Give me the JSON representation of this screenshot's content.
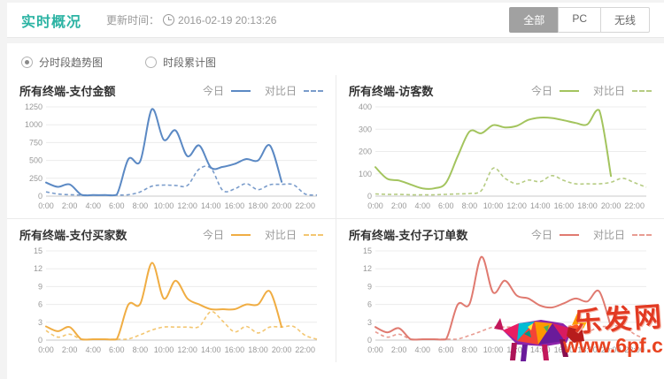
{
  "header": {
    "title": "实时概况",
    "update_label": "更新时间：",
    "update_time": "2016-02-19 20:13:26",
    "buttons": [
      {
        "label": "全部",
        "selected": true
      },
      {
        "label": "PC",
        "selected": false
      },
      {
        "label": "无线",
        "selected": false
      }
    ]
  },
  "filters": {
    "options": [
      {
        "label": "分时段趋势图",
        "selected": true
      },
      {
        "label": "时段累计图",
        "selected": false
      }
    ]
  },
  "watermark": {
    "site_name": "乐发网",
    "site_url": "www.6pf.cn",
    "color": "#e23a23"
  },
  "chart_data": [
    {
      "type": "line",
      "title": "所有终端-支付金额",
      "color": "#5b89c4",
      "dash_color": "#7a9ccb",
      "ylim": [
        0,
        1250
      ],
      "yticks": [
        0,
        250,
        500,
        750,
        1000,
        1250
      ],
      "x_tick_labels": [
        "0:00",
        "2:00",
        "4:00",
        "6:00",
        "8:00",
        "10:00",
        "12:00",
        "14:00",
        "16:00",
        "18:00",
        "20:00",
        "22:00"
      ],
      "legend_position": "top-right",
      "grid": true,
      "series": [
        {
          "name": "今日",
          "style": "solid",
          "values": [
            190,
            130,
            165,
            20,
            15,
            15,
            20,
            520,
            490,
            1220,
            790,
            920,
            560,
            710,
            400,
            410,
            450,
            520,
            500,
            710,
            200
          ]
        },
        {
          "name": "对比日",
          "style": "dashed",
          "values": [
            60,
            30,
            20,
            15,
            15,
            15,
            15,
            20,
            60,
            140,
            155,
            150,
            150,
            380,
            390,
            80,
            100,
            175,
            90,
            160,
            165,
            160,
            30,
            15
          ]
        }
      ]
    },
    {
      "type": "line",
      "title": "所有终端-访客数",
      "color": "#a3c45e",
      "dash_color": "#b6cc83",
      "ylim": [
        0,
        400
      ],
      "yticks": [
        0,
        100,
        200,
        300,
        400
      ],
      "x_tick_labels": [
        "0:00",
        "2:00",
        "4:00",
        "6:00",
        "8:00",
        "10:00",
        "12:00",
        "14:00",
        "16:00",
        "18:00",
        "20:00",
        "22:00"
      ],
      "legend_position": "top-right",
      "grid": true,
      "series": [
        {
          "name": "今日",
          "style": "solid",
          "values": [
            130,
            78,
            70,
            52,
            35,
            35,
            60,
            180,
            290,
            282,
            318,
            308,
            315,
            342,
            352,
            350,
            340,
            328,
            322,
            385,
            90
          ]
        },
        {
          "name": "对比日",
          "style": "dashed",
          "values": [
            10,
            8,
            8,
            6,
            6,
            6,
            8,
            10,
            12,
            25,
            125,
            80,
            55,
            72,
            65,
            92,
            70,
            55,
            55,
            55,
            62,
            80,
            60,
            40
          ]
        }
      ]
    },
    {
      "type": "line",
      "title": "所有终端-支付买家数",
      "color": "#f0ad43",
      "dash_color": "#f3c671",
      "ylim": [
        0,
        15
      ],
      "yticks": [
        0,
        3,
        6,
        9,
        12,
        15
      ],
      "x_tick_labels": [
        "0:00",
        "2:00",
        "4:00",
        "6:00",
        "8:00",
        "10:00",
        "12:00",
        "14:00",
        "16:00",
        "18:00",
        "20:00",
        "22:00"
      ],
      "legend_position": "top-right",
      "grid": true,
      "series": [
        {
          "name": "今日",
          "style": "solid",
          "values": [
            2.3,
            1.5,
            2.2,
            0.15,
            0.15,
            0.15,
            0.15,
            6,
            6.1,
            13,
            7,
            10,
            7,
            6,
            5.2,
            5.2,
            5.2,
            6,
            6,
            8.2,
            2.2
          ]
        },
        {
          "name": "对比日",
          "style": "dashed",
          "values": [
            1.6,
            0.5,
            1.0,
            0.15,
            0.15,
            0.15,
            0.15,
            0.2,
            0.9,
            1.7,
            2.2,
            2.2,
            2.2,
            2.3,
            4.8,
            3.2,
            1.4,
            2.3,
            1.2,
            2.2,
            2.2,
            2.3,
            0.8,
            0.15
          ]
        }
      ]
    },
    {
      "type": "line",
      "title": "所有终端-支付子订单数",
      "color": "#e07a70",
      "dash_color": "#e89c92",
      "ylim": [
        0,
        15
      ],
      "yticks": [
        0,
        3,
        6,
        9,
        12,
        15
      ],
      "x_tick_labels": [
        "0:00",
        "2:00",
        "4:00",
        "6:00",
        "8:00",
        "10:00",
        "12:00",
        "14:00",
        "16:00",
        "18:00",
        "20:00",
        "22:00"
      ],
      "legend_position": "top-right",
      "grid": true,
      "series": [
        {
          "name": "今日",
          "style": "solid",
          "values": [
            2.2,
            1.3,
            2.0,
            0.15,
            0.15,
            0.15,
            0.15,
            6,
            6.1,
            14,
            8,
            10,
            7.5,
            7,
            5.8,
            5.5,
            6.2,
            7,
            6.5,
            8.2,
            2.2
          ]
        },
        {
          "name": "对比日",
          "style": "dashed",
          "values": [
            1.4,
            0.5,
            1.0,
            0.15,
            0.15,
            0.15,
            0.15,
            0.2,
            0.8,
            1.5,
            2.2,
            2.2,
            2.2,
            2.3,
            2.5,
            2.8,
            2.2,
            2.5,
            1.5,
            2.2,
            2.3,
            2.4,
            1.0,
            0.15
          ]
        }
      ]
    }
  ]
}
